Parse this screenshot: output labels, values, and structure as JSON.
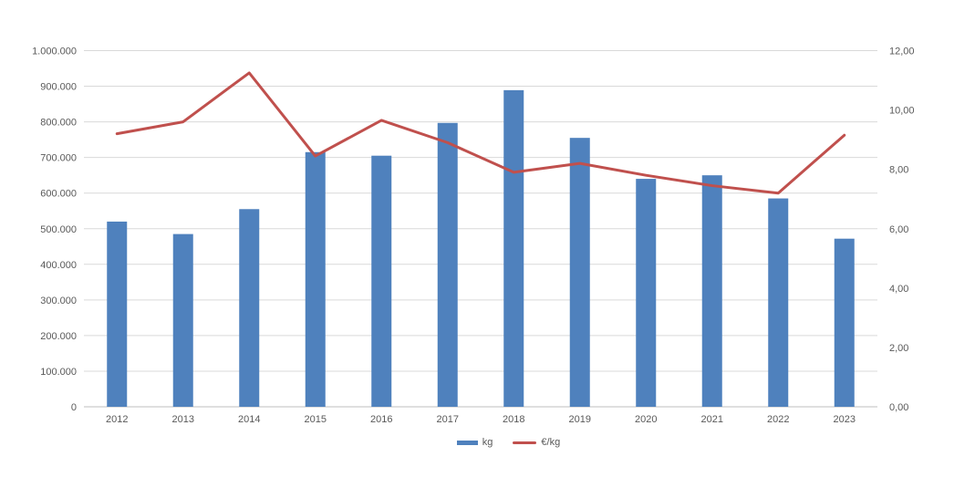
{
  "colors": {
    "bar": "#4F81BD",
    "line": "#C0504D",
    "gridline": "#D9D9D9",
    "axis_line": "#BFBFBF",
    "label_text": "#595959",
    "background": "#FFFFFF"
  },
  "chart_data": {
    "type": "bar",
    "subtype": "combo-bar-line-dual-axis",
    "title": "",
    "categories": [
      "2012",
      "2013",
      "2014",
      "2015",
      "2016",
      "2017",
      "2018",
      "2019",
      "2020",
      "2021",
      "2022",
      "2023"
    ],
    "series": [
      {
        "name": "kg",
        "type": "bar",
        "axis": "left",
        "color": "#4F81BD",
        "values": [
          520000,
          485000,
          555000,
          715000,
          705000,
          797000,
          889000,
          755000,
          640000,
          650000,
          585000,
          472000
        ]
      },
      {
        "name": "€/kg",
        "type": "line",
        "axis": "right",
        "color": "#C0504D",
        "values": [
          9.2,
          9.6,
          11.25,
          8.45,
          9.65,
          8.9,
          7.9,
          8.2,
          7.8,
          7.45,
          7.2,
          9.15
        ]
      }
    ],
    "left_axis": {
      "min": 0,
      "max": 1000000,
      "step": 100000,
      "tick_labels": [
        "0",
        "100.000",
        "200.000",
        "300.000",
        "400.000",
        "500.000",
        "600.000",
        "700.000",
        "800.000",
        "900.000",
        "1.000.000"
      ]
    },
    "right_axis": {
      "min": 0,
      "max": 12,
      "step": 2,
      "tick_labels": [
        "0,00",
        "2,00",
        "4,00",
        "6,00",
        "8,00",
        "10,00",
        "12,00"
      ]
    },
    "grid": true,
    "legend_position": "bottom"
  }
}
